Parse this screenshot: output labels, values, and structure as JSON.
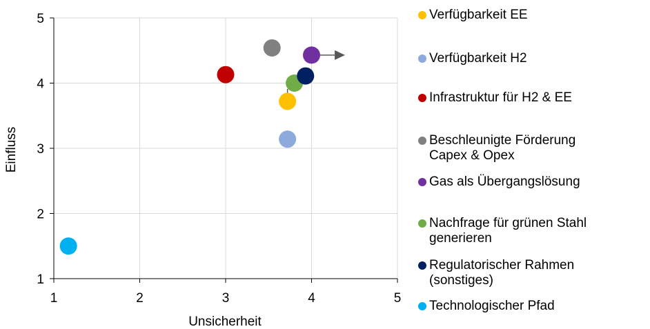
{
  "chart_data": {
    "type": "scatter",
    "xlabel": "Unsicherheit",
    "ylabel": "Einfluss",
    "xlim": [
      1,
      5
    ],
    "ylim": [
      1,
      5
    ],
    "x_ticks": [
      "1",
      "2",
      "3",
      "4",
      "5"
    ],
    "y_ticks": [
      "1",
      "2",
      "3",
      "4",
      "5"
    ],
    "grid": true,
    "legend_position": "right",
    "series": [
      {
        "name": "Verfügbarkeit EE",
        "x": 3.72,
        "y": 3.72,
        "color": "#FFC000"
      },
      {
        "name": "Verfügbarkeit H2",
        "x": 3.72,
        "y": 3.14,
        "color": "#8EA9DB"
      },
      {
        "name": " Infrastruktur für H2 & EE",
        "x": 3.0,
        "y": 4.13,
        "color": "#C00000"
      },
      {
        "name": "Beschleunigte Förderung\nCapex & Opex",
        "x": 3.54,
        "y": 4.54,
        "color": "#808080"
      },
      {
        "name": "Gas als Übergangslösung",
        "x": 4.0,
        "y": 4.43,
        "color": "#7030A0"
      },
      {
        "name": "Nachfrage für grünen Stahl\ngenerieren",
        "x": 3.8,
        "y": 4.0,
        "color": "#70AD47"
      },
      {
        "name": "Regulatorischer Rahmen\n(sonstiges)",
        "x": 3.93,
        "y": 4.11,
        "color": "#002060"
      },
      {
        "name": "Technologischer Pfad",
        "x": 1.17,
        "y": 1.5,
        "color": "#00B0F0"
      }
    ],
    "arrows": [
      {
        "from": [
          3.72,
          3.91
        ],
        "to": [
          3.72,
          3.66
        ],
        "color": "#595959"
      },
      {
        "from": [
          4.08,
          4.43
        ],
        "to": [
          4.39,
          4.43
        ],
        "color": "#595959"
      }
    ]
  }
}
